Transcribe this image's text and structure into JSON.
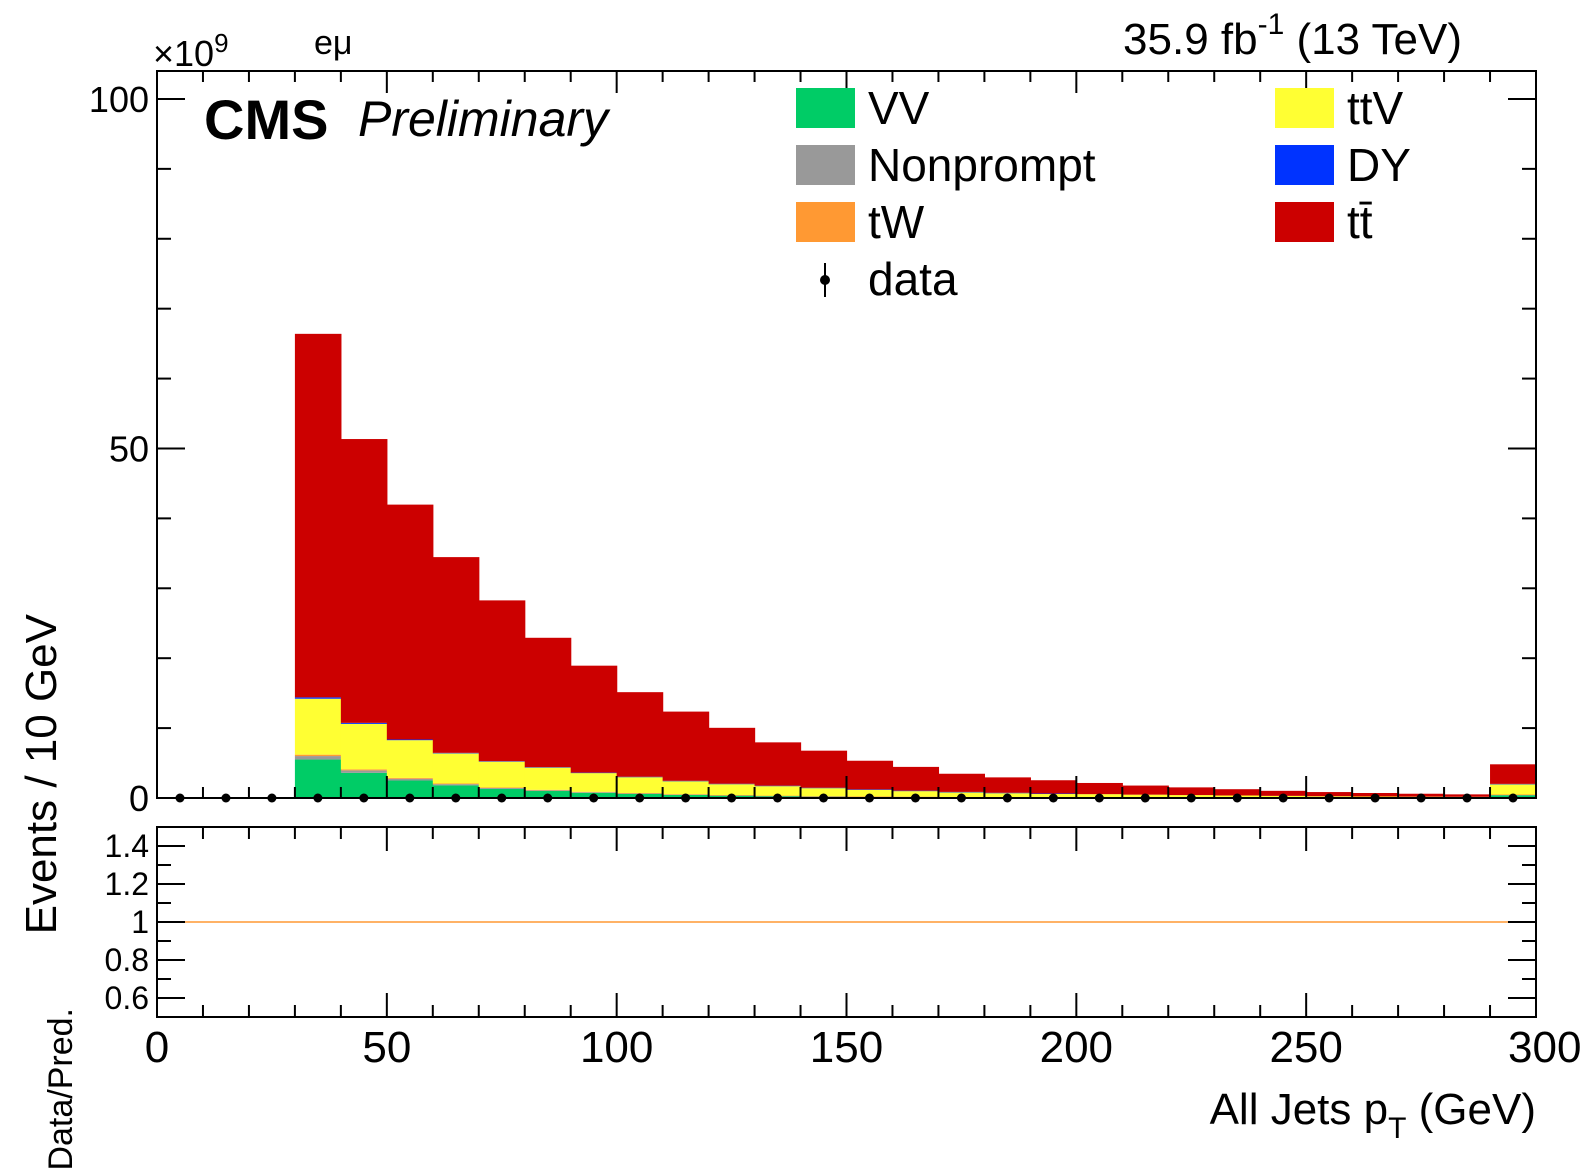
{
  "header": {
    "channel": "eμ",
    "lumi_value": "35.9 fb",
    "lumi_exp": "-1",
    "lumi_energy": " (13 TeV)",
    "experiment": "CMS",
    "status": "Preliminary",
    "exponent_base": "×10",
    "exponent_power": "9"
  },
  "chart_data": [
    {
      "type": "bar",
      "stacked": true,
      "ylabel": "Events / 10 GeV",
      "xlim": [
        0,
        300
      ],
      "ylim": [
        0,
        104000000000.0
      ],
      "y_multiplier_label": "×10^9",
      "x_ticks": [
        0,
        50,
        100,
        150,
        200,
        250,
        300
      ],
      "x_tick_labels": [
        "0",
        "50",
        "100",
        "150",
        "200",
        "250",
        "300"
      ],
      "y_ticks": [
        0,
        50,
        100
      ],
      "y_tick_labels": [
        "0",
        "50",
        "100"
      ],
      "bin_edges": [
        0,
        10,
        20,
        30,
        40,
        50,
        60,
        70,
        80,
        90,
        100,
        110,
        120,
        130,
        140,
        150,
        160,
        170,
        180,
        190,
        200,
        210,
        220,
        230,
        240,
        250,
        260,
        270,
        280,
        290,
        300
      ],
      "series": [
        {
          "name": "VV",
          "color": "#00cc66",
          "values": [
            0,
            0,
            0,
            5500000000.0,
            3600000000.0,
            2500000000.0,
            1800000000.0,
            1300000000.0,
            1000000000.0,
            750000000.0,
            600000000.0,
            450000000.0,
            350000000.0,
            280000000.0,
            220000000.0,
            180000000.0,
            150000000.0,
            120000000.0,
            100000000.0,
            80000000.0,
            70000000.0,
            60000000.0,
            50000000.0,
            40000000.0,
            35000000.0,
            30000000.0,
            25000000.0,
            20000000.0,
            20000000.0,
            400000000.0
          ]
        },
        {
          "name": "Nonprompt",
          "color": "#999999",
          "values": [
            0,
            0,
            0,
            500000000.0,
            350000000.0,
            250000000.0,
            180000000.0,
            130000000.0,
            100000000.0,
            80000000.0,
            60000000.0,
            50000000.0,
            40000000.0,
            30000000.0,
            20000000.0,
            20000000.0,
            20000000.0,
            10000000.0,
            10000000.0,
            10000000.0,
            10000000.0,
            10000000.0,
            10000000.0,
            10000000.0,
            0,
            0,
            0,
            0,
            0,
            50000000.0
          ]
        },
        {
          "name": "tW",
          "color": "#ff9933",
          "values": [
            0,
            0,
            0,
            200000000.0,
            150000000.0,
            120000000.0,
            100000000.0,
            80000000.0,
            70000000.0,
            60000000.0,
            50000000.0,
            40000000.0,
            30000000.0,
            30000000.0,
            20000000.0,
            20000000.0,
            20000000.0,
            10000000.0,
            10000000.0,
            10000000.0,
            10000000.0,
            10000000.0,
            10000000.0,
            10000000.0,
            10000000.0,
            0,
            0,
            0,
            0,
            50000000.0
          ]
        },
        {
          "name": "ttV",
          "color": "#ffff33",
          "values": [
            0,
            0,
            0,
            8000000000.0,
            6500000000.0,
            5400000000.0,
            4300000000.0,
            3700000000.0,
            3200000000.0,
            2700000000.0,
            2300000000.0,
            1900000000.0,
            1600000000.0,
            1400000000.0,
            1200000000.0,
            1000000000.0,
            850000000.0,
            720000000.0,
            620000000.0,
            530000000.0,
            460000000.0,
            400000000.0,
            350000000.0,
            300000000.0,
            260000000.0,
            220000000.0,
            190000000.0,
            170000000.0,
            150000000.0,
            1500000000.0
          ]
        },
        {
          "name": "DY",
          "color": "#0033ff",
          "values": [
            0,
            0,
            0,
            200000000.0,
            150000000.0,
            100000000.0,
            80000000.0,
            60000000.0,
            50000000.0,
            40000000.0,
            30000000.0,
            20000000.0,
            20000000.0,
            20000000.0,
            10000000.0,
            10000000.0,
            10000000.0,
            10000000.0,
            10000000.0,
            10000000.0,
            0,
            0,
            0,
            0,
            0,
            0,
            0,
            0,
            0,
            20000000.0
          ]
        },
        {
          "name": "tt̄",
          "color": "#cc0000",
          "values": [
            0,
            0,
            0,
            52000000000.0,
            40600000000.0,
            33600000000.0,
            28000000000.0,
            23000000000.0,
            18500000000.0,
            15300000000.0,
            12100000000.0,
            9900000000.0,
            8000000000.0,
            6200000000.0,
            5300000000.0,
            4100000000.0,
            3400000000.0,
            2600000000.0,
            2200000000.0,
            1900000000.0,
            1600000000.0,
            1300000000.0,
            1100000000.0,
            900000000.0,
            720000000.0,
            600000000.0,
            500000000.0,
            420000000.0,
            350000000.0,
            2800000000.0
          ]
        }
      ],
      "data_points": {
        "name": "data",
        "x": [
          5,
          15,
          25,
          35,
          45,
          55,
          65,
          75,
          85,
          95,
          105,
          115,
          125,
          135,
          145,
          155,
          165,
          175,
          185,
          195,
          205,
          215,
          225,
          235,
          245,
          255,
          265,
          275,
          285,
          295
        ],
        "y": [
          0,
          0,
          0,
          0,
          0,
          0,
          0,
          0,
          0,
          0,
          0,
          0,
          0,
          0,
          0,
          0,
          0,
          0,
          0,
          0,
          0,
          0,
          0,
          0,
          0,
          0,
          0,
          0,
          0,
          0
        ]
      },
      "legend": [
        {
          "label": "VV",
          "color": "#00cc66",
          "kind": "box"
        },
        {
          "label": "Nonprompt",
          "color": "#999999",
          "kind": "box"
        },
        {
          "label": "tW",
          "color": "#ff9933",
          "kind": "box"
        },
        {
          "label": "data",
          "color": "#000000",
          "kind": "marker"
        },
        {
          "label": "ttV",
          "color": "#ffff33",
          "kind": "box"
        },
        {
          "label": "DY",
          "color": "#0033ff",
          "kind": "box"
        },
        {
          "label": "tt̄",
          "color": "#cc0000",
          "kind": "box"
        }
      ]
    },
    {
      "type": "line",
      "ylabel": "Data/Pred.",
      "xlabel": "All Jets p",
      "xlabel_sub": "T",
      "xlabel_unit": " (GeV)",
      "xlim": [
        0,
        300
      ],
      "ylim": [
        0.5,
        1.5
      ],
      "y_ticks": [
        0.6,
        0.8,
        1.0,
        1.2,
        1.4
      ],
      "y_tick_labels": [
        "0.6",
        "0.8",
        "1",
        "1.2",
        "1.4"
      ],
      "reference_line": 1.0,
      "reference_color": "#ff9933"
    }
  ]
}
